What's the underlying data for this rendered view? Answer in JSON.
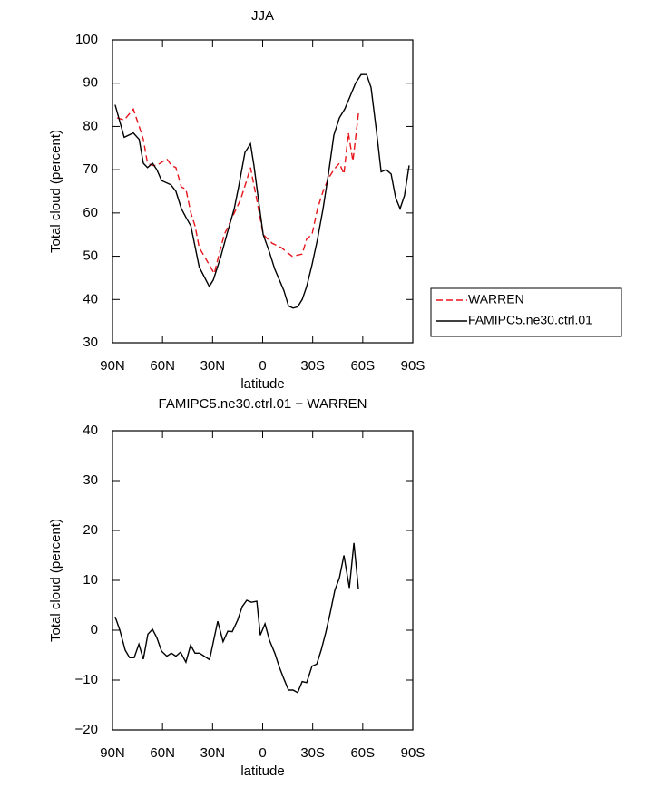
{
  "chart_data": [
    {
      "type": "line",
      "title": "JJA",
      "xlabel": "latitude",
      "ylabel": "Total cloud (percent)",
      "xlim": [
        90,
        -90
      ],
      "xticks": [
        {
          "value": 90,
          "label": "90N"
        },
        {
          "value": 60,
          "label": "60N"
        },
        {
          "value": 30,
          "label": "30N"
        },
        0,
        {
          "value": -30,
          "label": "30S"
        },
        {
          "value": -60,
          "label": "60S"
        },
        {
          "value": -90,
          "label": "90S"
        }
      ],
      "ylim": [
        30,
        100
      ],
      "yticks": [
        30,
        40,
        50,
        60,
        70,
        80,
        90,
        100
      ],
      "legend": "right",
      "series": [
        {
          "name": "WARREN",
          "color": "#e8141b",
          "style": "dashed",
          "x": [
            87.3,
            83,
            77.5,
            74,
            71.5,
            69,
            66,
            63.4,
            57.4,
            54.7,
            52,
            48.7,
            46,
            43,
            40.5,
            38,
            32,
            29,
            25.8,
            23,
            17,
            13.3,
            10,
            7.3,
            3.5,
            -0.3,
            -5.7,
            -11.1,
            -17.7,
            -23.7,
            -26.4,
            -29.6,
            -32.9,
            -36.2,
            -39.4,
            -42.7,
            -46,
            -48.7,
            -51.4,
            -54.1,
            -57.4
          ],
          "values": [
            82,
            81.5,
            84,
            80,
            77,
            71.5,
            71,
            71,
            72.5,
            71,
            70.5,
            66,
            65.5,
            60,
            57,
            52,
            48,
            46,
            51,
            55,
            60,
            63,
            67,
            70.5,
            63,
            55,
            53,
            52,
            50,
            50.5,
            54,
            55,
            61,
            65,
            68,
            70,
            71.5,
            69,
            78.5,
            72,
            83
          ]
        },
        {
          "name": "FAMIPC5.ne30.ctrl.01",
          "color": "#000000",
          "style": "solid",
          "x": [
            88.4,
            83,
            77.5,
            74,
            71.5,
            69,
            66,
            63.4,
            60.6,
            55,
            52,
            48.7,
            46,
            43,
            38,
            32,
            29.6,
            25,
            21.5,
            17,
            14.4,
            10.6,
            7.3,
            5.2,
            2.5,
            -0.3,
            -4,
            -7.3,
            -10.6,
            -12.8,
            -15.5,
            -18.2,
            -21,
            -23.7,
            -26.4,
            -29.6,
            -32.9,
            -36.2,
            -39.4,
            -42.7,
            -46,
            -49.2,
            -52.5,
            -55.7,
            -59,
            -62.3,
            -65,
            -68.2,
            -71,
            -74,
            -77,
            -79.7,
            -82.4,
            -85,
            -87.8
          ],
          "values": [
            85,
            77.5,
            78.5,
            77,
            71.5,
            70.5,
            71.5,
            70,
            67.5,
            66.5,
            65,
            61,
            59,
            57,
            47.5,
            43,
            44.5,
            50,
            55,
            61,
            66,
            74,
            76,
            71,
            63,
            55,
            51,
            47,
            44,
            42,
            38.5,
            38,
            38.3,
            40,
            43,
            48,
            54,
            61,
            69,
            78,
            82,
            84,
            87,
            90,
            92,
            92,
            89,
            79,
            69.5,
            70,
            69,
            63.5,
            61,
            64,
            71
          ]
        }
      ]
    },
    {
      "type": "line",
      "title": "FAMIPC5.ne30.ctrl.01 − WARREN",
      "xlabel": "latitude",
      "ylabel": "Total cloud (percent)",
      "xlim": [
        90,
        -90
      ],
      "xticks": [
        {
          "value": 90,
          "label": "90N"
        },
        {
          "value": 60,
          "label": "60N"
        },
        {
          "value": 30,
          "label": "30N"
        },
        0,
        {
          "value": -30,
          "label": "30S"
        },
        {
          "value": -60,
          "label": "60S"
        },
        {
          "value": -90,
          "label": "90S"
        }
      ],
      "ylim": [
        -20,
        40
      ],
      "yticks": [
        {
          "value": -20,
          "label": "−20"
        },
        {
          "value": -10,
          "label": "−10"
        },
        0,
        10,
        20,
        30,
        40
      ],
      "series": [
        {
          "color": "#000000",
          "style": "solid",
          "x": [
            88.4,
            85.6,
            82.4,
            79.7,
            77,
            74.2,
            71.5,
            68.8,
            66,
            63.4,
            60.6,
            57.4,
            54.7,
            52,
            49.2,
            46,
            43.2,
            40.5,
            37.8,
            35,
            31.8,
            26.9,
            23.7,
            20.9,
            18.2,
            15,
            12.3,
            9.5,
            6.8,
            3.5,
            1.4,
            -1.4,
            -4.1,
            -7.3,
            -10.1,
            -12.8,
            -15.5,
            -18.2,
            -21,
            -23.7,
            -26.4,
            -29.6,
            -32.4,
            -35.1,
            -37.8,
            -40.5,
            -43.3,
            -46,
            -48.7,
            -52,
            -54.7,
            -57.4
          ],
          "values": [
            2.7,
            0,
            -4,
            -5.5,
            -5.5,
            -2.8,
            -5.8,
            -0.8,
            0.2,
            -1.5,
            -4.2,
            -5.2,
            -4.6,
            -5.2,
            -4.4,
            -6.4,
            -3,
            -4.6,
            -4.6,
            -5.2,
            -5.9,
            1.8,
            -2.3,
            -0.2,
            -0.3,
            2,
            4.7,
            6,
            5.6,
            5.8,
            -1,
            1.3,
            -2,
            -4.6,
            -7.5,
            -9.8,
            -12,
            -12,
            -12.5,
            -10.3,
            -10.5,
            -7.2,
            -6.8,
            -4,
            -0.5,
            3.5,
            8,
            10.5,
            15,
            8.5,
            17.5,
            8.2
          ]
        }
      ]
    }
  ]
}
